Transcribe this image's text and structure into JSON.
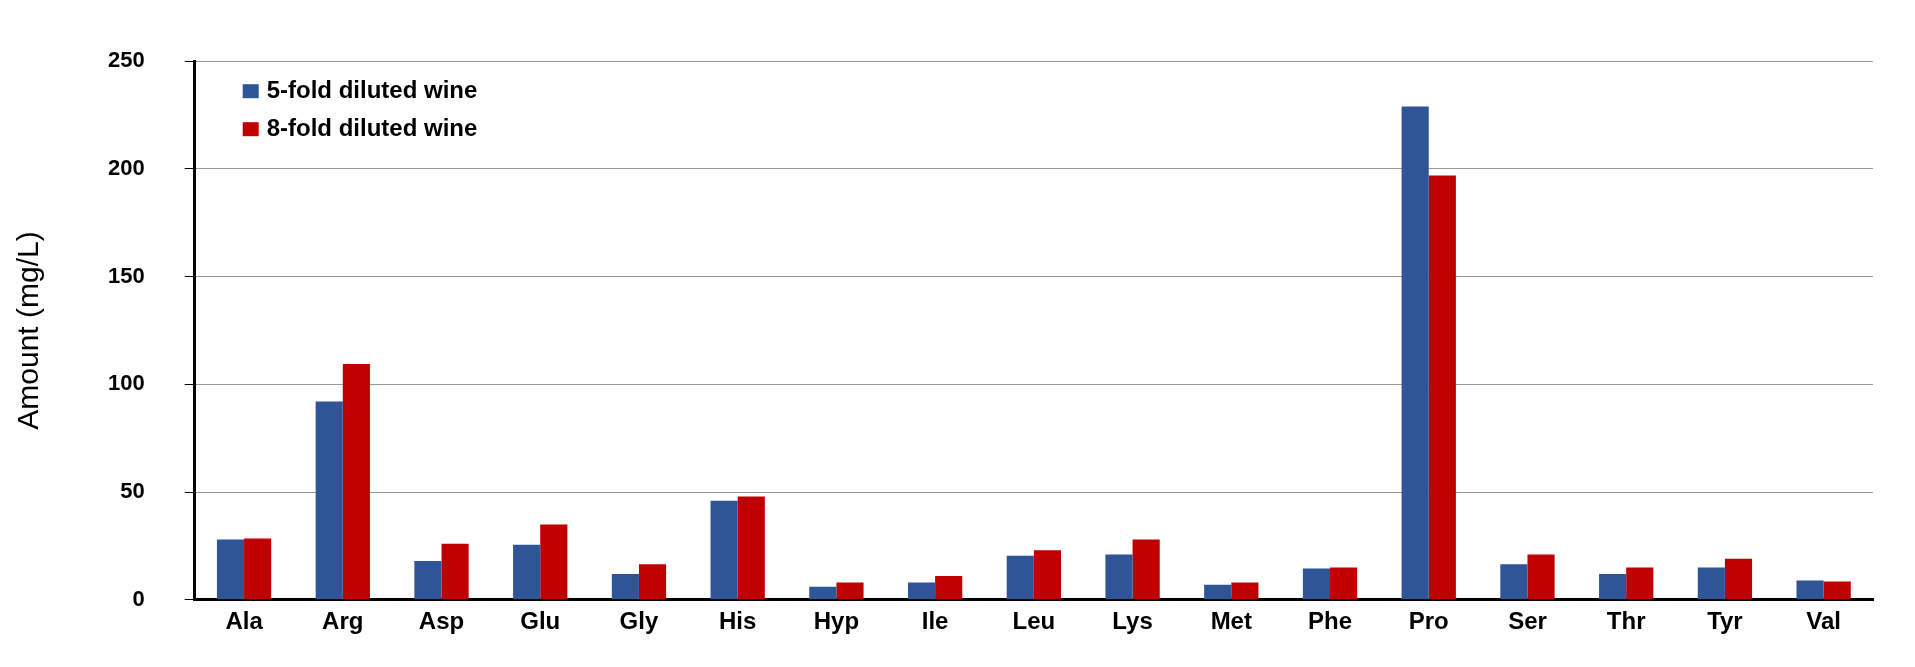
{
  "chart_data": {
    "type": "bar",
    "ylabel": "Amount (mg/L)",
    "categories": [
      "Ala",
      "Arg",
      "Asp",
      "Glu",
      "Gly",
      "His",
      "Hyp",
      "Ile",
      "Leu",
      "Lys",
      "Met",
      "Phe",
      "Pro",
      "Ser",
      "Thr",
      "Tyr",
      "Val"
    ],
    "series": [
      {
        "name": "5-fold diluted wine",
        "color": "#2f5597",
        "values": [
          28,
          92,
          18,
          25.5,
          12,
          46,
          6,
          8,
          20.5,
          21,
          7,
          14.5,
          229,
          16.5,
          12,
          15,
          9
        ]
      },
      {
        "name": "8-fold diluted wine",
        "color": "#c00000",
        "values": [
          28.5,
          109.5,
          26,
          35,
          16.5,
          48,
          8,
          11,
          23,
          28,
          8,
          15,
          197,
          21,
          15,
          19,
          8.5
        ]
      }
    ],
    "ylim": [
      0,
      250
    ],
    "yticks": [
      0,
      50,
      100,
      150,
      200,
      250
    ],
    "grid": "y",
    "legend": "top left"
  }
}
